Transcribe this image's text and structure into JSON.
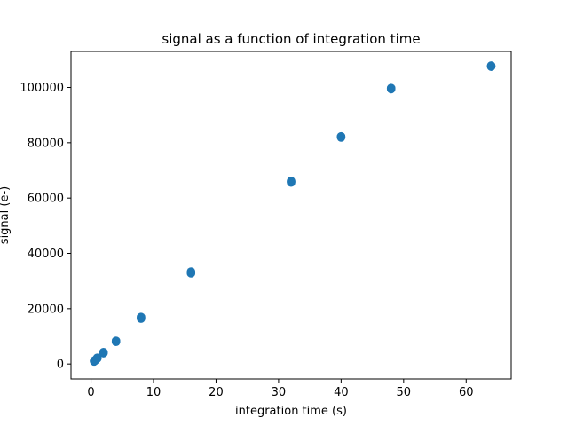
{
  "chart_data": {
    "type": "scatter",
    "title": "signal as a function of integration time",
    "xlabel": "integration time (s)",
    "ylabel": "signal (e-)",
    "xlim": [
      -3.2,
      67.2
    ],
    "ylim": [
      -5400,
      113000
    ],
    "xticks": [
      0,
      10,
      20,
      30,
      40,
      50,
      60
    ],
    "xtick_labels": [
      "0",
      "10",
      "20",
      "30",
      "40",
      "50",
      "60"
    ],
    "yticks": [
      0,
      20000,
      40000,
      60000,
      80000,
      100000
    ],
    "ytick_labels": [
      "0",
      "20000",
      "40000",
      "60000",
      "80000",
      "100000"
    ],
    "grid": false,
    "marker_color": "#1f77b4",
    "x": [
      0.5,
      0.5,
      0.5,
      0.75,
      0.75,
      1.0,
      1.0,
      1.0,
      2.0,
      2.0,
      2.0,
      4.0,
      4.0,
      4.0,
      8.0,
      8.0,
      8.0,
      16.0,
      16.0,
      16.0,
      32.0,
      32.0,
      32.0,
      40.0,
      40.0,
      40.0,
      48.0,
      48.0,
      48.0,
      64.0,
      64.0,
      64.0
    ],
    "y": [
      900,
      1050,
      1200,
      1400,
      1550,
      1950,
      2100,
      2250,
      3900,
      4100,
      4300,
      8000,
      8200,
      8400,
      16400,
      16700,
      17000,
      32800,
      33100,
      33400,
      65600,
      65900,
      66200,
      81900,
      82100,
      82300,
      99400,
      99600,
      99800,
      107500,
      107700,
      107900
    ]
  }
}
